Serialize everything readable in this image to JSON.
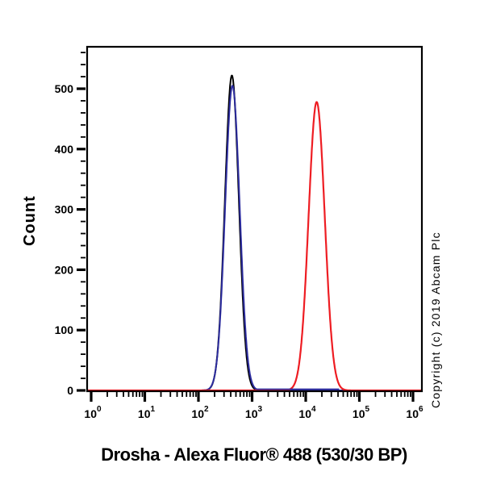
{
  "chart_data": {
    "type": "line",
    "subtype": "flow-cytometry-histogram",
    "title": "Drosha - Alexa Fluor® 488 (530/30 BP)",
    "ylabel": "Count",
    "copyright": "Copyright (c) 2019 Abcam Plc",
    "background": "#ffffff",
    "frame_color": "#000000",
    "grid": false,
    "legend": null,
    "x_axis": {
      "scale": "log",
      "min_exponent": 0,
      "max_exponent": 6,
      "tick_labels": [
        "10^0",
        "10^1",
        "10^2",
        "10^3",
        "10^4",
        "10^5",
        "10^6"
      ],
      "minor_tick_multiples": [
        2,
        3,
        4,
        5,
        6,
        7,
        8,
        9
      ]
    },
    "y_axis": {
      "min": 0,
      "max": 570,
      "major_ticks": [
        0,
        100,
        200,
        300,
        400,
        500
      ],
      "minor_step": 20
    },
    "series": [
      {
        "name": "black-curve",
        "color": "#000000",
        "stroke_width": 2,
        "peak_x": 420,
        "peak_count": 522,
        "sigma_decades": 0.13
      },
      {
        "name": "blue-curve",
        "color": "#2C2C9E",
        "stroke_width": 2,
        "peak_x": 430,
        "peak_count": 505,
        "sigma_decades": 0.135,
        "baseline_tail": {
          "from_x": 1200,
          "to_x": 42000,
          "count": 2
        }
      },
      {
        "name": "red-curve",
        "color": "#EE1D23",
        "stroke_width": 2.2,
        "peak_x": 16000,
        "peak_count": 478,
        "sigma_decades": 0.15
      }
    ]
  }
}
